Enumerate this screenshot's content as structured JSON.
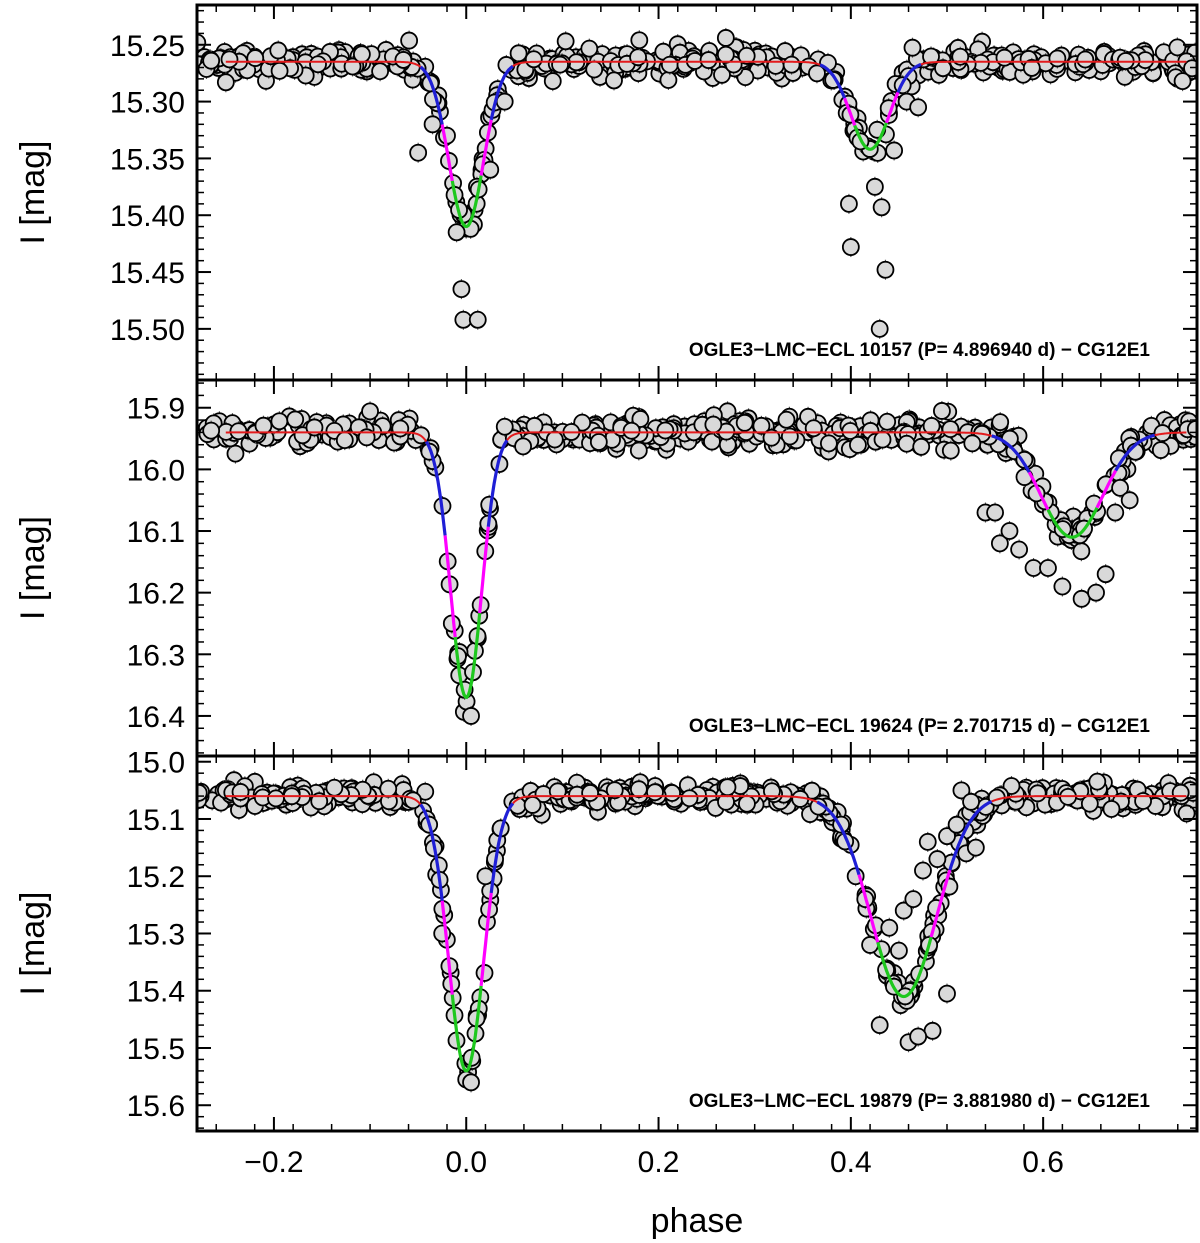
{
  "chart_data": {
    "type": "scatter",
    "shared_x": {
      "label": "phase",
      "xlim": [
        -0.28,
        0.76
      ],
      "ticks": [
        -0.2,
        0.0,
        0.2,
        0.4,
        0.6
      ],
      "tick_labels": [
        "−0.2",
        "0.0",
        "0.2",
        "0.4",
        "0.6"
      ]
    },
    "model_colors": {
      "baseline": "#e31a1c",
      "wing": "#1f1fd6",
      "ingress": "#ff00ff",
      "core": "#1ec81e"
    },
    "point_style": {
      "fill": "#d9d9d9",
      "stroke": "#000000"
    },
    "panels": [
      {
        "annotation": "OGLE3−LMC−ECL 10157  (P= 4.896940 d) − CG12E1",
        "ylabel": "I [mag]",
        "ylim": [
          15.215,
          15.545
        ],
        "inverted": true,
        "yticks": [
          15.25,
          15.3,
          15.35,
          15.4,
          15.45,
          15.5
        ],
        "ytick_labels": [
          "15.25",
          "15.30",
          "15.35",
          "15.40",
          "15.45",
          "15.50"
        ],
        "baseline": 15.265,
        "eclipses": [
          {
            "center": 0.0,
            "depth": 0.145,
            "width": 0.018
          },
          {
            "center": 0.42,
            "depth": 0.077,
            "width": 0.02
          }
        ],
        "scatter_sigma": 0.006,
        "outliers": [
          {
            "x": -0.05,
            "y": 15.345
          },
          {
            "x": -0.035,
            "y": 15.32
          },
          {
            "x": -0.02,
            "y": 15.33
          },
          {
            "x": -0.01,
            "y": 15.415
          },
          {
            "x": -0.005,
            "y": 15.465
          },
          {
            "x": -0.003,
            "y": 15.492
          },
          {
            "x": 0.012,
            "y": 15.492
          },
          {
            "x": 0.025,
            "y": 15.36
          },
          {
            "x": 0.04,
            "y": 15.3
          },
          {
            "x": 0.398,
            "y": 15.39
          },
          {
            "x": 0.4,
            "y": 15.428
          },
          {
            "x": 0.41,
            "y": 15.335
          },
          {
            "x": 0.425,
            "y": 15.375
          },
          {
            "x": 0.432,
            "y": 15.393
          },
          {
            "x": 0.436,
            "y": 15.448
          },
          {
            "x": 0.43,
            "y": 15.5
          },
          {
            "x": 0.445,
            "y": 15.343
          },
          {
            "x": 0.458,
            "y": 15.3
          },
          {
            "x": 0.47,
            "y": 15.305
          },
          {
            "x": 0.09,
            "y": 15.282
          },
          {
            "x": 0.18,
            "y": 15.246
          },
          {
            "x": 0.27,
            "y": 15.244
          },
          {
            "x": -0.25,
            "y": 15.283
          },
          {
            "x": 0.745,
            "y": 15.282
          }
        ]
      },
      {
        "annotation": "OGLE3−LMC−ECL 19624  (P= 2.701715 d) − CG12E1",
        "ylabel": "I [mag]",
        "ylim": [
          15.855,
          16.465
        ],
        "inverted": true,
        "yticks": [
          15.9,
          16.0,
          16.1,
          16.2,
          16.3,
          16.4
        ],
        "ytick_labels": [
          "15.9",
          "16.0",
          "16.1",
          "16.2",
          "16.3",
          "16.4"
        ],
        "baseline": 15.94,
        "eclipses": [
          {
            "center": 0.0,
            "depth": 0.43,
            "width": 0.016
          },
          {
            "center": 0.63,
            "depth": 0.17,
            "width": 0.032
          }
        ],
        "scatter_sigma": 0.012,
        "outliers": [
          {
            "x": 0.54,
            "y": 16.07
          },
          {
            "x": 0.55,
            "y": 16.07
          },
          {
            "x": 0.555,
            "y": 16.12
          },
          {
            "x": 0.565,
            "y": 16.1
          },
          {
            "x": 0.575,
            "y": 16.13
          },
          {
            "x": 0.59,
            "y": 16.16
          },
          {
            "x": 0.605,
            "y": 16.16
          },
          {
            "x": 0.62,
            "y": 16.19
          },
          {
            "x": 0.64,
            "y": 16.21
          },
          {
            "x": 0.655,
            "y": 16.2
          },
          {
            "x": 0.665,
            "y": 16.17
          },
          {
            "x": 0.675,
            "y": 16.07
          },
          {
            "x": 0.68,
            "y": 16.03
          },
          {
            "x": 0.69,
            "y": 16.05
          },
          {
            "x": 0.005,
            "y": 16.4
          },
          {
            "x": -0.015,
            "y": 16.25
          },
          {
            "x": 0.015,
            "y": 16.22
          }
        ]
      },
      {
        "annotation": "OGLE3−LMC−ECL 19879  (P= 3.881980 d) − CG12E1",
        "ylabel": "I [mag]",
        "ylim": [
          14.99,
          15.645
        ],
        "inverted": true,
        "yticks": [
          15.0,
          15.1,
          15.2,
          15.3,
          15.4,
          15.5,
          15.6
        ],
        "ytick_labels": [
          "15.0",
          "15.1",
          "15.2",
          "15.3",
          "15.4",
          "15.5",
          "15.6"
        ],
        "baseline": 15.06,
        "eclipses": [
          {
            "center": 0.0,
            "depth": 0.48,
            "width": 0.018
          },
          {
            "center": 0.455,
            "depth": 0.35,
            "width": 0.034
          }
        ],
        "scatter_sigma": 0.01,
        "outliers": [
          {
            "x": -0.025,
            "y": 15.3
          },
          {
            "x": 0.0,
            "y": 15.555
          },
          {
            "x": 0.005,
            "y": 15.56
          },
          {
            "x": 0.02,
            "y": 15.2
          },
          {
            "x": 0.03,
            "y": 15.17
          },
          {
            "x": 0.405,
            "y": 15.2
          },
          {
            "x": 0.415,
            "y": 15.24
          },
          {
            "x": 0.42,
            "y": 15.32
          },
          {
            "x": 0.43,
            "y": 15.46
          },
          {
            "x": 0.44,
            "y": 15.29
          },
          {
            "x": 0.45,
            "y": 15.33
          },
          {
            "x": 0.455,
            "y": 15.26
          },
          {
            "x": 0.465,
            "y": 15.24
          },
          {
            "x": 0.475,
            "y": 15.19
          },
          {
            "x": 0.48,
            "y": 15.14
          },
          {
            "x": 0.49,
            "y": 15.17
          },
          {
            "x": 0.5,
            "y": 15.13
          },
          {
            "x": 0.51,
            "y": 15.11
          },
          {
            "x": 0.52,
            "y": 15.16
          },
          {
            "x": 0.53,
            "y": 15.15
          },
          {
            "x": 0.485,
            "y": 15.47
          },
          {
            "x": 0.5,
            "y": 15.405
          },
          {
            "x": 0.515,
            "y": 15.05
          },
          {
            "x": 0.525,
            "y": 15.07
          },
          {
            "x": 0.46,
            "y": 15.49
          },
          {
            "x": 0.47,
            "y": 15.48
          }
        ]
      }
    ]
  }
}
